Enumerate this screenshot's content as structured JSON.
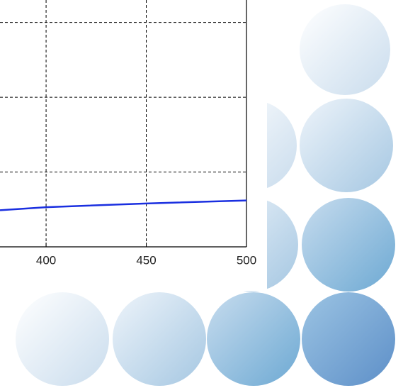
{
  "chart_data": {
    "type": "line",
    "x": [
      377,
      400,
      450,
      500
    ],
    "values": [
      0.49,
      0.53,
      0.58,
      0.62
    ],
    "color": "#1a2fe0",
    "xlim": [
      377,
      500
    ],
    "xticks": [
      400,
      450,
      500
    ],
    "ylim": [
      0,
      3.3
    ],
    "ygrid": [
      1,
      2,
      3
    ],
    "grid": true
  }
}
